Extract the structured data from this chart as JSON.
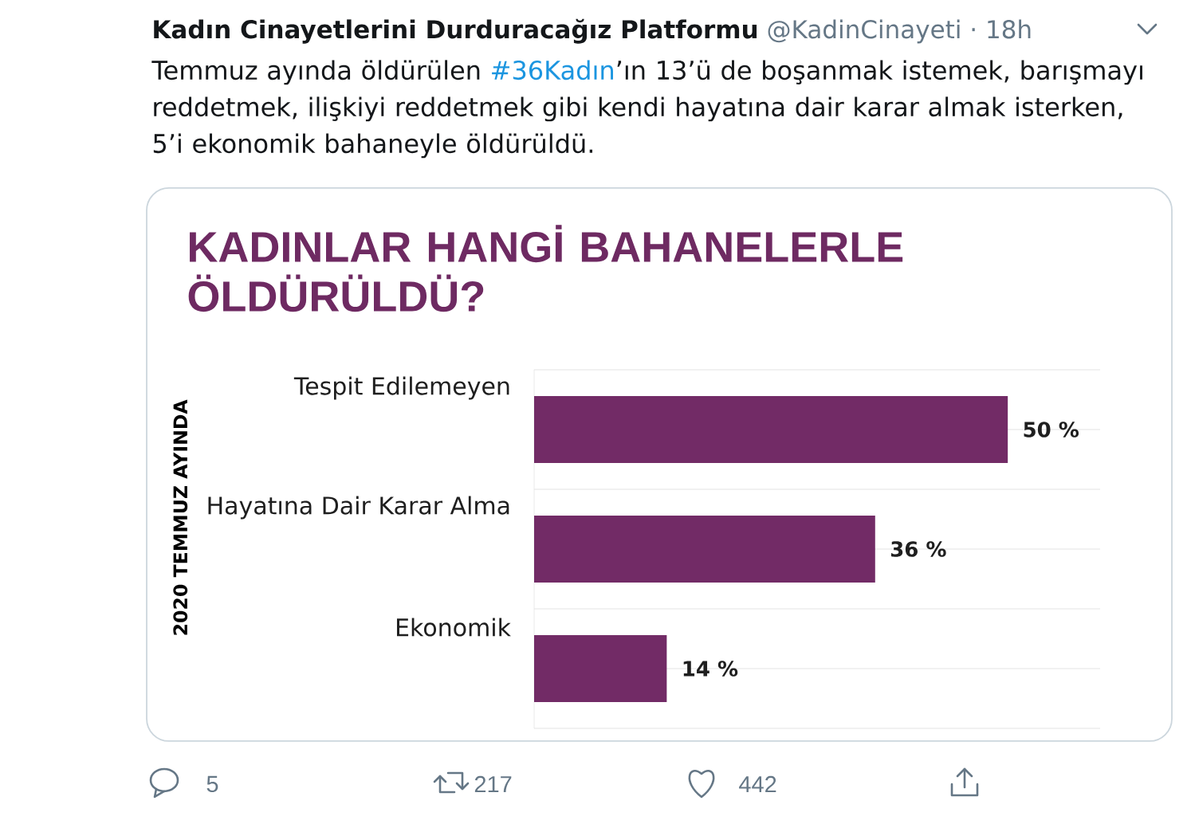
{
  "chart_data": {
    "type": "bar",
    "orientation": "horizontal",
    "title": "KADINLAR HANGİ BAHANELERLE ÖLDÜRÜLDÜ?",
    "ylabel": "2020 TEMMUZ AYINDA",
    "categories": [
      "Tespit Edilemeyen",
      "Hayatına Dair Karar Alma",
      "Ekonomik"
    ],
    "values": [
      50,
      36,
      14
    ],
    "value_labels": [
      "50 %",
      "36 %",
      "14 %"
    ],
    "color": "#722b66",
    "grid": "y",
    "annotations": [
      "Kadın Cinayetlerini Durduracağız Platformu",
      "@KadinCinayeti · 18h",
      "Temmuz ayında öldürülen",
      "#36Kadın",
      "’ın 13’ü de boşanmak istemek, barışmayı reddetmek, ilişkiyi reddetmek gibi kendi hayatına dair karar almak isterken, 5’i ekonomik bahaneyle öldürüldü.",
      "5",
      "217",
      "442"
    ]
  }
}
